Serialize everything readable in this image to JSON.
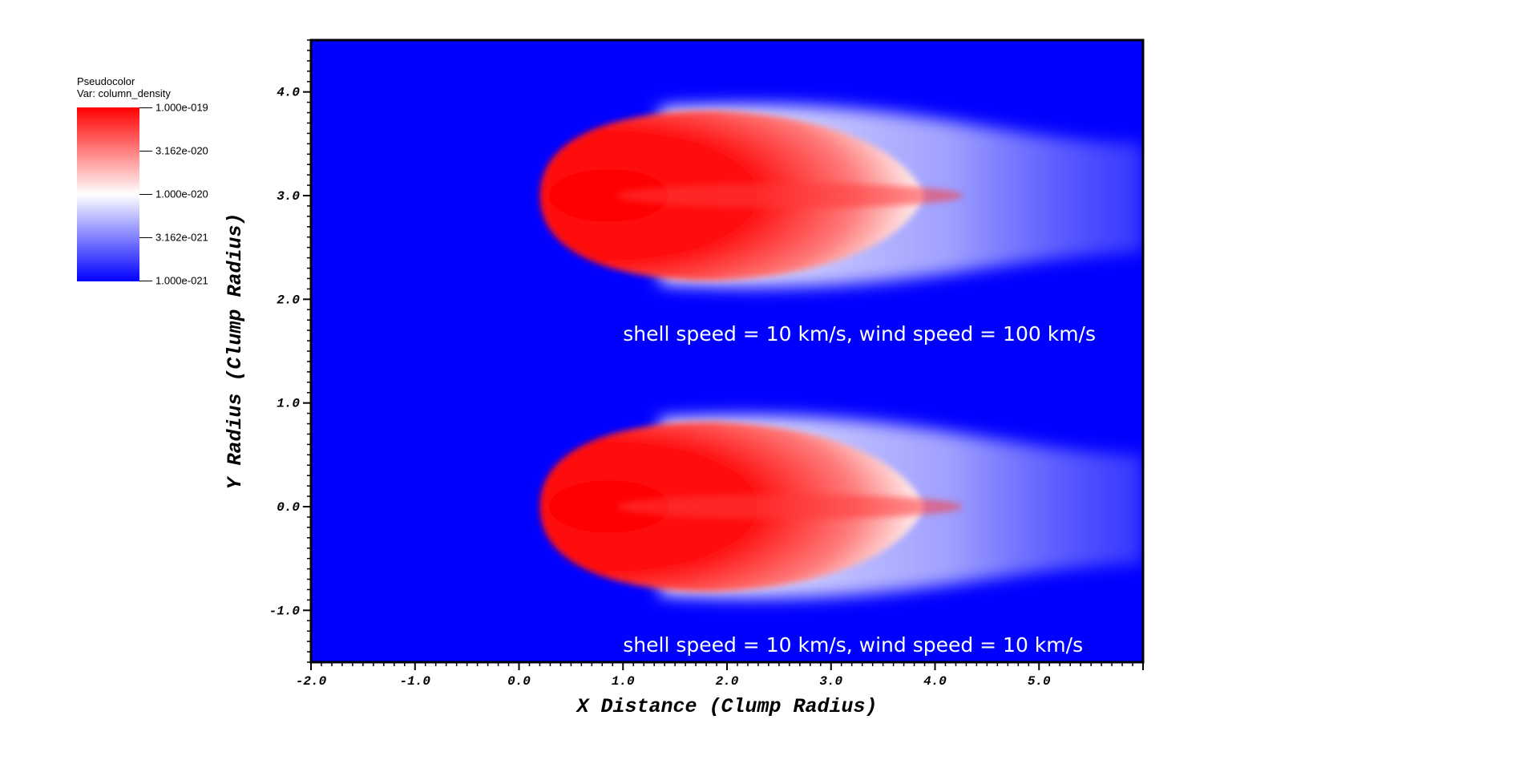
{
  "legend": {
    "title_line1": "Pseudocolor",
    "title_line2": "Var: column_density",
    "ticks": [
      "1.000e-019",
      "3.162e-020",
      "1.000e-020",
      "3.162e-021",
      "1.000e-021"
    ],
    "colors": {
      "high": "#ff0000",
      "mid": "#ffffff",
      "low": "#0000ff"
    }
  },
  "chart_data": {
    "type": "heatmap",
    "title": "",
    "xlabel": "X Distance (Clump Radius)",
    "ylabel": "Y Radius (Clump Radius)",
    "xlim": [
      -2.0,
      6.0
    ],
    "ylim": [
      -1.5,
      4.5
    ],
    "xticks": [
      {
        "value": -2.0,
        "label": "-2.0"
      },
      {
        "value": -1.0,
        "label": "-1.0"
      },
      {
        "value": 0.0,
        "label": "0.0"
      },
      {
        "value": 1.0,
        "label": "1.0"
      },
      {
        "value": 2.0,
        "label": "2.0"
      },
      {
        "value": 3.0,
        "label": "3.0"
      },
      {
        "value": 4.0,
        "label": "4.0"
      },
      {
        "value": 5.0,
        "label": "5.0"
      }
    ],
    "yticks": [
      {
        "value": -1.0,
        "label": "-1.0"
      },
      {
        "value": 0.0,
        "label": "0.0"
      },
      {
        "value": 1.0,
        "label": "1.0"
      },
      {
        "value": 2.0,
        "label": "2.0"
      },
      {
        "value": 3.0,
        "label": "3.0"
      },
      {
        "value": 4.0,
        "label": "4.0"
      }
    ],
    "background_color": "#0000ff",
    "colormap": {
      "variable": "column_density",
      "min": "1.000e-021",
      "max": "1.000e-019",
      "scale": "log"
    },
    "clumps": [
      {
        "center_y": 3.0,
        "head_x": 0.2,
        "tail_x": 6.0,
        "annotation": "shell speed = 10 km/s, wind speed = 100 km/s",
        "annotation_x": 1.0,
        "annotation_y": 1.6
      },
      {
        "center_y": 0.0,
        "head_x": 0.2,
        "tail_x": 6.0,
        "annotation": "shell speed = 10 km/s, wind speed = 10 km/s",
        "annotation_x": 1.0,
        "annotation_y": -1.4
      }
    ]
  }
}
